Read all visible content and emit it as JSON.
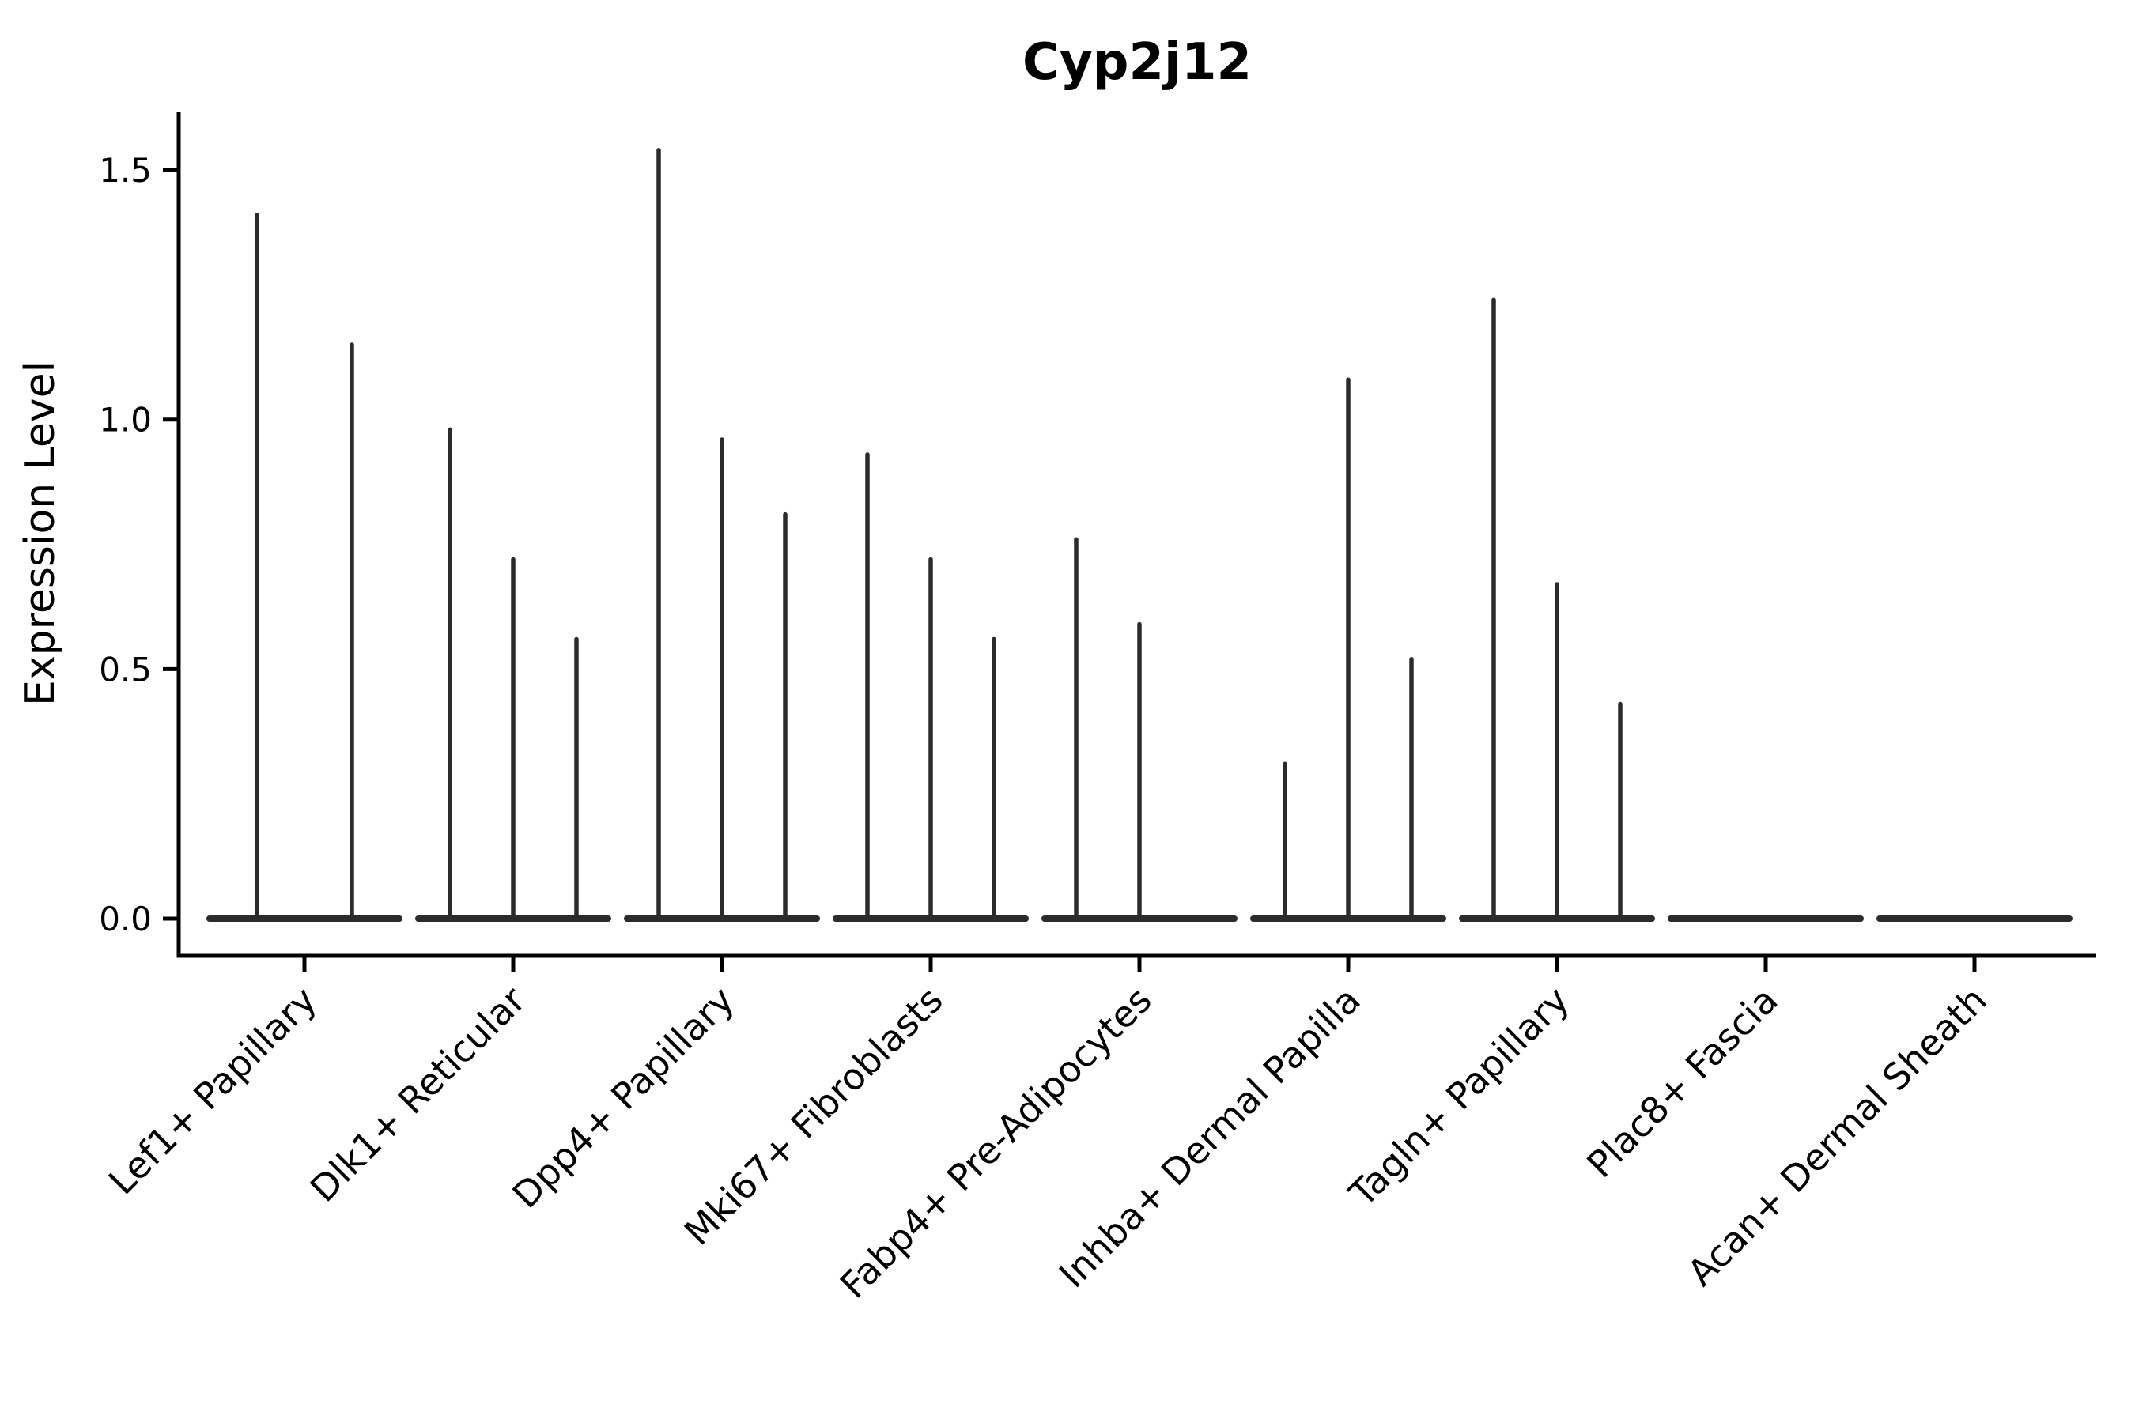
{
  "title": "Cyp2j12",
  "y_axis": {
    "label": "Expression Level",
    "tick_labels": [
      "0.0",
      "0.5",
      "1.0",
      "1.5"
    ],
    "tick_values": [
      0.0,
      0.5,
      1.0,
      1.5
    ]
  },
  "colors": {
    "violin_stroke": "#2b2b2b",
    "axis": "#000000",
    "background": "#ffffff"
  },
  "chart_data": {
    "type": "violin",
    "title": "Cyp2j12",
    "xlabel": "",
    "ylabel": "Expression Level",
    "ylim": [
      -0.075,
      1.62
    ],
    "yticks": [
      0.0,
      0.5,
      1.0,
      1.5
    ],
    "grid": false,
    "legend": "none",
    "note": "Single-cell gene expression violin plot; most cells express 0 so violins collapse to a flat base at 0 with thin spikes reaching the maximum expression value of each sub-violin.",
    "categories": [
      "Lef1+ Papillary",
      "Dlk1+ Reticular",
      "Dpp4+ Papillary",
      "Mki67+ Fibroblasts",
      "Fabp4+ Pre-Adipocytes",
      "Inhba+ Dermal Papilla",
      "Tagln+ Papillary",
      "Plac8+ Fascia",
      "Acan+ Dermal Sheath"
    ],
    "groups": [
      {
        "category": "Lef1+ Papillary",
        "violin_maxima": [
          1.41,
          1.15
        ]
      },
      {
        "category": "Dlk1+ Reticular",
        "violin_maxima": [
          0.98,
          0.72,
          0.56
        ]
      },
      {
        "category": "Dpp4+ Papillary",
        "violin_maxima": [
          1.54,
          0.96,
          0.81
        ]
      },
      {
        "category": "Mki67+ Fibroblasts",
        "violin_maxima": [
          0.93,
          0.72,
          0.56
        ]
      },
      {
        "category": "Fabp4+ Pre-Adipocytes",
        "violin_maxima": [
          0.76,
          0.59,
          0.0
        ]
      },
      {
        "category": "Inhba+ Dermal Papilla",
        "violin_maxima": [
          0.31,
          1.08,
          0.52
        ]
      },
      {
        "category": "Tagln+ Papillary",
        "violin_maxima": [
          1.24,
          0.67,
          0.43
        ]
      },
      {
        "category": "Plac8+ Fascia",
        "violin_maxima": [
          0.0
        ]
      },
      {
        "category": "Acan+ Dermal Sheath",
        "violin_maxima": [
          0.0
        ]
      }
    ]
  }
}
